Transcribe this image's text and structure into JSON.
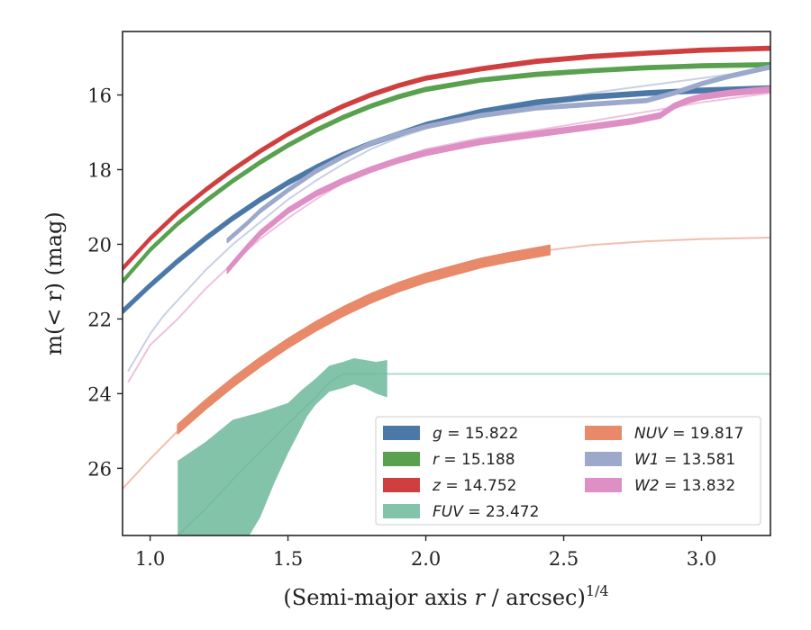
{
  "chart_data": {
    "type": "line",
    "title": "",
    "xlabel_main": "(Semi-major axis ",
    "xlabel_var": "r",
    "xlabel_unit": " / arcsec)",
    "xlabel_exp": "1/4",
    "ylabel": "m(< r) (mag)",
    "xlim": [
      0.9,
      3.25
    ],
    "ylim": [
      27.8,
      14.3
    ],
    "y_inverted": true,
    "xticks": [
      1.0,
      1.5,
      2.0,
      2.5,
      3.0
    ],
    "xtick_labels": [
      "1.0",
      "1.5",
      "2.0",
      "2.5",
      "3.0"
    ],
    "yticks": [
      16,
      18,
      20,
      22,
      24,
      26
    ],
    "ytick_labels": [
      "16",
      "18",
      "20",
      "22",
      "24",
      "26"
    ],
    "grid": false,
    "legend_position": "lower-right",
    "legend_columns": 2,
    "series": [
      {
        "name": "g",
        "legend_value": "15.822",
        "color": "#4C78A8",
        "band_x": [
          0.9,
          1.0,
          1.1,
          1.2,
          1.3,
          1.4,
          1.5,
          1.6,
          1.7,
          1.8,
          1.9,
          2.0,
          2.2,
          2.4,
          2.6,
          2.8,
          3.0,
          3.25
        ],
        "band_y": [
          21.8,
          21.1,
          20.45,
          19.85,
          19.3,
          18.8,
          18.35,
          17.95,
          17.6,
          17.3,
          17.05,
          16.8,
          16.45,
          16.2,
          16.05,
          15.95,
          15.88,
          15.82
        ],
        "band_width": 0.12
      },
      {
        "name": "r",
        "legend_value": "15.188",
        "color": "#59A14F",
        "band_x": [
          0.9,
          1.0,
          1.1,
          1.2,
          1.3,
          1.4,
          1.5,
          1.6,
          1.7,
          1.8,
          1.9,
          2.0,
          2.2,
          2.4,
          2.6,
          2.8,
          3.0,
          3.25
        ],
        "band_y": [
          21.0,
          20.15,
          19.45,
          18.85,
          18.3,
          17.8,
          17.35,
          16.95,
          16.6,
          16.3,
          16.05,
          15.85,
          15.6,
          15.45,
          15.35,
          15.27,
          15.22,
          15.19
        ],
        "band_width": 0.1
      },
      {
        "name": "z",
        "legend_value": "14.752",
        "color": "#D03F3F",
        "band_x": [
          0.9,
          1.0,
          1.1,
          1.2,
          1.3,
          1.4,
          1.5,
          1.6,
          1.7,
          1.8,
          1.9,
          2.0,
          2.2,
          2.4,
          2.6,
          2.8,
          3.0,
          3.25
        ],
        "band_y": [
          20.65,
          19.85,
          19.15,
          18.55,
          18.0,
          17.5,
          17.05,
          16.65,
          16.3,
          16.0,
          15.75,
          15.55,
          15.3,
          15.1,
          14.97,
          14.88,
          14.8,
          14.75
        ],
        "band_width": 0.1
      },
      {
        "name": "FUV",
        "legend_value": "23.472",
        "color": "#6DB89B",
        "band_upper_x": [
          1.1,
          1.2,
          1.3,
          1.4,
          1.5,
          1.55,
          1.6,
          1.65,
          1.7,
          1.74,
          1.78,
          1.82,
          1.86
        ],
        "band_upper_y": [
          25.8,
          25.3,
          24.7,
          24.5,
          24.25,
          23.9,
          23.6,
          23.25,
          23.15,
          23.05,
          23.1,
          23.15,
          23.1
        ],
        "band_lower_x": [
          1.86,
          1.82,
          1.78,
          1.74,
          1.7,
          1.65,
          1.6,
          1.57,
          1.5,
          1.45,
          1.4,
          1.36,
          1.3,
          1.2,
          1.1
        ],
        "band_lower_y": [
          24.1,
          24.0,
          23.85,
          23.75,
          23.85,
          23.95,
          24.3,
          24.6,
          25.6,
          26.4,
          27.3,
          27.8,
          27.8,
          27.8,
          27.8
        ],
        "faint_x": [
          1.1,
          1.2,
          1.3,
          1.4,
          1.5,
          1.6,
          1.65,
          1.7,
          1.86,
          3.25
        ],
        "faint_y": [
          27.8,
          27.1,
          26.3,
          25.55,
          24.8,
          24.1,
          23.7,
          23.47,
          23.472,
          23.472
        ]
      },
      {
        "name": "NUV",
        "legend_value": "19.817",
        "color": "#E8896A",
        "band_x": [
          1.1,
          1.2,
          1.3,
          1.4,
          1.5,
          1.6,
          1.7,
          1.8,
          1.9,
          2.0,
          2.1,
          2.2,
          2.3,
          2.45
        ],
        "band_y": [
          24.95,
          24.3,
          23.7,
          23.15,
          22.65,
          22.2,
          21.8,
          21.45,
          21.15,
          20.9,
          20.7,
          20.5,
          20.35,
          20.15
        ],
        "band_width": 0.25,
        "faint_x": [
          0.9,
          1.0,
          1.1,
          1.2,
          1.3,
          1.4,
          1.5,
          1.6,
          1.7,
          1.8,
          1.9,
          2.0,
          2.2,
          2.45,
          2.6,
          2.8,
          3.0,
          3.25
        ],
        "faint_y": [
          26.55,
          25.75,
          25.0,
          24.35,
          23.75,
          23.2,
          22.7,
          22.25,
          21.85,
          21.5,
          21.2,
          20.95,
          20.55,
          20.15,
          20.02,
          19.92,
          19.86,
          19.82
        ]
      },
      {
        "name": "W1",
        "legend_value": "13.581",
        "color": "#9CA9CB",
        "band_x": [
          1.28,
          1.35,
          1.4,
          1.5,
          1.6,
          1.7,
          1.8,
          1.9,
          2.0,
          2.2,
          2.4,
          2.6,
          2.8,
          2.9,
          3.0,
          3.1,
          3.25
        ],
        "band_y": [
          19.9,
          19.45,
          19.1,
          18.55,
          18.05,
          17.65,
          17.3,
          17.05,
          16.85,
          16.55,
          16.35,
          16.25,
          16.15,
          15.95,
          15.7,
          15.5,
          15.25
        ],
        "band_width": 0.1,
        "faint_x": [
          0.92,
          1.0,
          1.05,
          1.1,
          1.2,
          1.3,
          1.4,
          1.5,
          1.6,
          1.7,
          1.8,
          1.9,
          2.0,
          2.2,
          2.4,
          2.6,
          2.8,
          3.0,
          3.25
        ],
        "faint_y": [
          23.4,
          22.4,
          21.9,
          21.5,
          20.7,
          20.0,
          19.4,
          18.8,
          18.3,
          17.85,
          17.45,
          17.15,
          16.9,
          16.5,
          16.2,
          15.95,
          15.75,
          15.55,
          15.3
        ]
      },
      {
        "name": "W2",
        "legend_value": "13.832",
        "color": "#DE8FC4",
        "band_x": [
          1.28,
          1.35,
          1.4,
          1.5,
          1.6,
          1.7,
          1.8,
          1.9,
          2.0,
          2.2,
          2.4,
          2.6,
          2.75,
          2.85,
          2.9,
          2.95,
          3.0,
          3.1,
          3.25
        ],
        "band_y": [
          20.7,
          20.1,
          19.7,
          19.1,
          18.65,
          18.3,
          18.0,
          17.75,
          17.55,
          17.25,
          17.05,
          16.85,
          16.7,
          16.55,
          16.3,
          16.15,
          16.05,
          15.95,
          15.85
        ],
        "band_width": 0.14,
        "faint_x": [
          0.92,
          1.0,
          1.1,
          1.2,
          1.3,
          1.4,
          1.5,
          1.6,
          1.7,
          1.8,
          1.9,
          2.0,
          2.2,
          2.4,
          2.6,
          2.8,
          3.0,
          3.25
        ],
        "faint_y": [
          23.7,
          22.7,
          22.0,
          21.2,
          20.5,
          19.85,
          19.3,
          18.8,
          18.35,
          18.0,
          17.7,
          17.45,
          17.15,
          16.95,
          16.7,
          16.45,
          16.2,
          15.95
        ]
      }
    ]
  }
}
